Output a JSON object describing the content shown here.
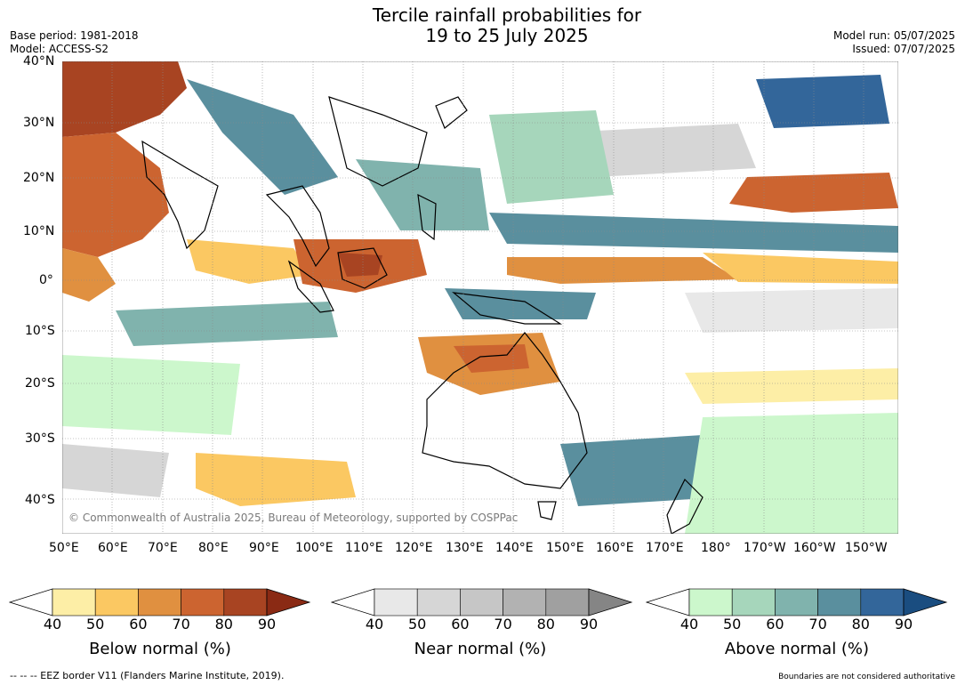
{
  "header": {
    "title_line1": "Tercile rainfall probabilities for",
    "title_line2": "19 to 25 July 2025",
    "base_period": "Base period: 1981-2018",
    "model": "Model: ACCESS-S2",
    "model_run": "Model run: 05/07/2025",
    "issued": "Issued: 07/07/2025"
  },
  "map": {
    "lat_labels": [
      "40°N",
      "30°N",
      "20°N",
      "10°N",
      "0°",
      "10°S",
      "20°S",
      "30°S",
      "40°S"
    ],
    "lon_labels": [
      "50°E",
      "60°E",
      "70°E",
      "80°E",
      "90°E",
      "100°E",
      "110°E",
      "120°E",
      "130°E",
      "140°E",
      "150°E",
      "160°E",
      "170°E",
      "180°",
      "170°W",
      "160°W",
      "150°W"
    ],
    "credit": "© Commonwealth of Australia 2025, Bureau of Meteorology, supported by COSPPac",
    "background": "#ffffff",
    "coastline_color": "#000000"
  },
  "legends": [
    {
      "title": "Below normal (%)",
      "ticks": [
        "40",
        "50",
        "60",
        "70",
        "80",
        "90"
      ],
      "colors": [
        "#fdeea6",
        "#fbc862",
        "#e09040",
        "#cc6430",
        "#a84422",
        "#8a2a14"
      ]
    },
    {
      "title": "Near normal (%)",
      "ticks": [
        "40",
        "50",
        "60",
        "70",
        "80",
        "90"
      ],
      "colors": [
        "#e8e8e8",
        "#d6d6d6",
        "#c6c6c6",
        "#b2b2b2",
        "#a0a0a0",
        "#858585"
      ]
    },
    {
      "title": "Above normal (%)",
      "ticks": [
        "40",
        "50",
        "60",
        "70",
        "80",
        "90"
      ],
      "colors": [
        "#ccf7cc",
        "#a6d6bb",
        "#80b3ad",
        "#5a8f9e",
        "#33669a",
        "#1a4d80"
      ]
    }
  ],
  "footer": {
    "eez_note": "--  --  -- EEZ border V11 (Flanders Marine Institute, 2019).",
    "disclaimer": "Boundaries are not considered authoritative"
  }
}
